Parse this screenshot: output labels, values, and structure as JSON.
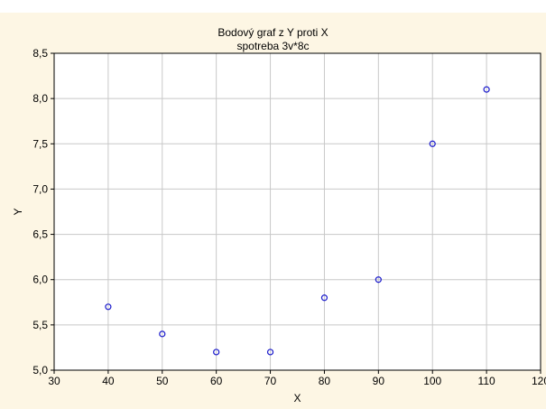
{
  "chart_data": {
    "type": "scatter",
    "title": "Bodový graf z Y proti X",
    "subtitle": "spotreba 3v*8c",
    "xlabel": "X",
    "ylabel": "Y",
    "xlim": [
      30,
      120
    ],
    "ylim": [
      5.0,
      8.5
    ],
    "xticks": [
      "30",
      "40",
      "50",
      "60",
      "70",
      "80",
      "90",
      "100",
      "110",
      "120"
    ],
    "yticks": [
      "5,0",
      "5,5",
      "6,0",
      "6,5",
      "7,0",
      "7,5",
      "8,0",
      "8,5"
    ],
    "grid": true,
    "series": [
      {
        "x": [
          40,
          50,
          60,
          70,
          80,
          90,
          100,
          110
        ],
        "y": [
          5.7,
          5.4,
          5.2,
          5.2,
          5.8,
          6.0,
          7.5,
          8.1
        ]
      }
    ]
  },
  "colors": {
    "marker": "#1a1acc",
    "grid": "#c8c8c8",
    "plot_background": "#ffffff",
    "figure_background": "#fdf6e4"
  }
}
